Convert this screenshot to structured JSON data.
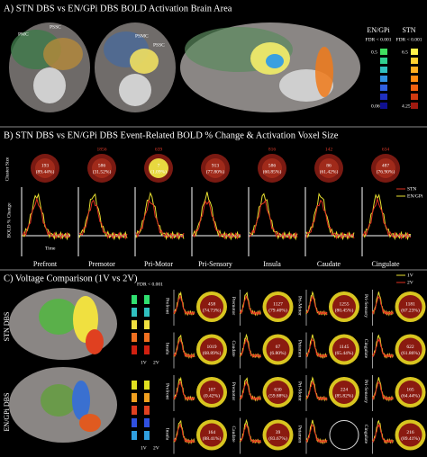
{
  "panel_a": {
    "title": "A) STN DBS vs EN/GPi DBS BOLD Activation Brain Area",
    "labels": [
      "PMC",
      "PSSC",
      "PSMC",
      "PSSC"
    ],
    "legend": [
      {
        "title": "EN/GPi",
        "note": "FDR < 0.001",
        "ticks": [
          "0.5",
          "0.06"
        ]
      },
      {
        "title": "STN",
        "note": "FDR < 0.001",
        "ticks": [
          "6.5",
          "4.25"
        ]
      }
    ]
  },
  "panel_b": {
    "title": "B) STN DBS vs EN/GPi DBS Event-Related BOLD % Change & Activation Voxel Size",
    "cluster_label": "Cluster Size",
    "y_label": "BOLD % Change",
    "x_label": "Time",
    "legend": [
      "STN",
      "EN/GPi"
    ],
    "regions": [
      {
        "name": "Prefront",
        "top": "",
        "count": "193",
        "percent": "(89.44%)"
      },
      {
        "name": "Premotor",
        "top": "1856",
        "count": "586",
        "percent": "(31.52%)"
      },
      {
        "name": "Pri-Motor",
        "top": "639",
        "count": "7",
        "percent": "(1.09%)"
      },
      {
        "name": "Pri-Sensory",
        "top": "",
        "count": "913",
        "percent": "(77.80%)"
      },
      {
        "name": "Insula",
        "top": "816",
        "count": "586",
        "percent": "(60.85%)"
      },
      {
        "name": "Caudate",
        "top": "142",
        "count": "86",
        "percent": "(61.42%)"
      },
      {
        "name": "Cingulate",
        "top": "634",
        "count": "487",
        "percent": "(76.90%)"
      }
    ]
  },
  "panel_c": {
    "title": "C) Voltage Comparison (1V vs 2V)",
    "legend": [
      "1V",
      "2V"
    ],
    "fdr": "FDR < 0.001",
    "groups": [
      {
        "name": "STN DBS",
        "rows": [
          [
            {
              "region": "Prefront",
              "count": "458",
              "percent": "(74.73%)"
            },
            {
              "region": "Premotor",
              "count": "1127",
              "percent": "(79.40%)"
            },
            {
              "region": "Pri-Motor",
              "count": "1255",
              "percent": "(80.45%)"
            },
            {
              "region": "Pri-Sensory",
              "count": "1181",
              "percent": "(67.23%)"
            }
          ],
          [
            {
              "region": "Insula",
              "count": "1019",
              "percent": "(68.89%)"
            },
            {
              "region": "Caudate",
              "count": "67",
              "percent": "(6.80%)"
            },
            {
              "region": "Putamen",
              "count": "1145",
              "percent": "(65.44%)"
            },
            {
              "region": "Cingulate",
              "count": "622",
              "percent": "(61.86%)"
            }
          ]
        ]
      },
      {
        "name": "EN/GPi DBS",
        "rows": [
          [
            {
              "region": "Prefront",
              "count": "107",
              "percent": "(0.42%)"
            },
            {
              "region": "Premotor",
              "count": "630",
              "percent": "(59.88%)"
            },
            {
              "region": "Pri-Motor",
              "count": "224",
              "percent": "(85.82%)"
            },
            {
              "region": "Pri-Sensory",
              "count": "165",
              "percent": "(64.44%)"
            }
          ],
          [
            {
              "region": "Insula",
              "count": "164",
              "percent": "(88.41%)"
            },
            {
              "region": "Caudate",
              "count": "39",
              "percent": "(83.67%)"
            },
            {
              "region": "Putamen",
              "count": null,
              "percent": null
            },
            {
              "region": "Cingulate",
              "count": "216",
              "percent": "(89.41%)"
            }
          ]
        ]
      }
    ]
  }
}
